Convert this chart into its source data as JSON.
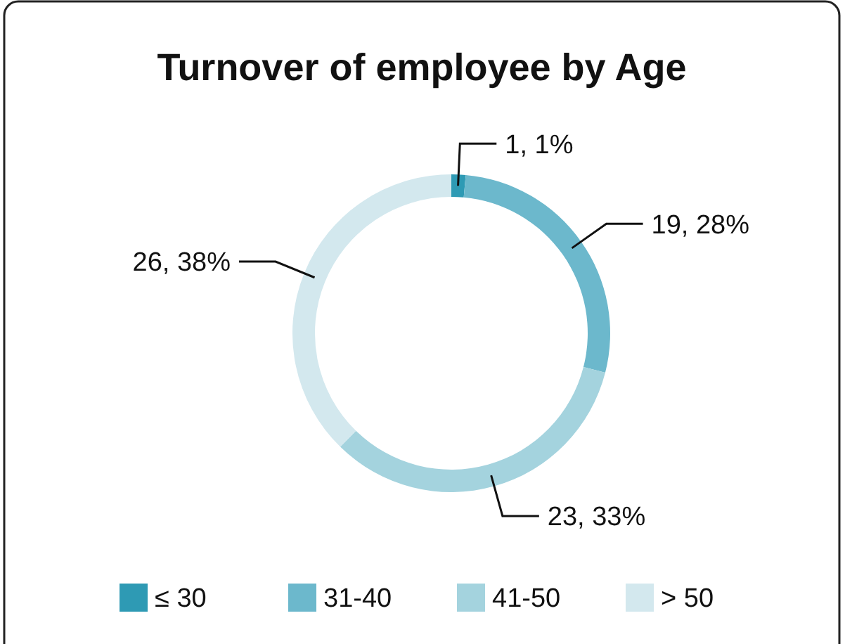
{
  "chart_data": {
    "type": "donut",
    "title": "Turnover of employee by Age",
    "categories": [
      "≤ 30",
      "31-40",
      "41-50",
      "> 50"
    ],
    "values": [
      1,
      19,
      23,
      26
    ],
    "value_labels": [
      "1, 1%",
      "19, 28%",
      "23, 33%",
      "26, 38%"
    ],
    "colors": [
      "#2e9ab4",
      "#6cb8cc",
      "#a4d3de",
      "#d3e8ee"
    ],
    "legend": "bottom"
  }
}
